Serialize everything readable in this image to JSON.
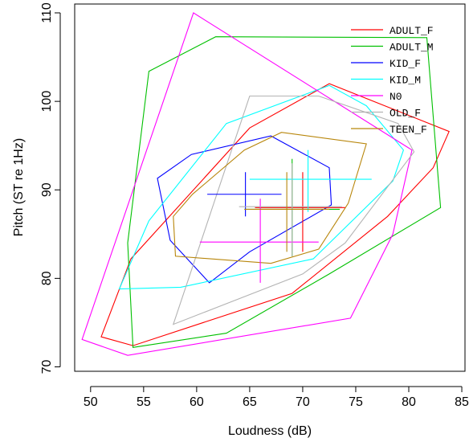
{
  "chart_data": {
    "type": "line",
    "title": "",
    "xlabel": "Loudness (dB)",
    "ylabel": "Pitch (ST re 1Hz)",
    "xlim": [
      48.5,
      85.3
    ],
    "ylim": [
      69.5,
      111.0
    ],
    "x_ticks": [
      50,
      55,
      60,
      65,
      70,
      75,
      80,
      85
    ],
    "y_ticks": [
      70,
      80,
      90,
      100,
      110
    ],
    "grid": false,
    "legend_position": "top-right",
    "series": [
      {
        "name": "ADULT_F",
        "color": "#ff0000",
        "hull": [
          [
            54.0,
            72.4
          ],
          [
            51.0,
            73.4
          ],
          [
            53.8,
            82.2
          ],
          [
            65.0,
            97.0
          ],
          [
            72.5,
            102.0
          ],
          [
            83.8,
            96.6
          ],
          [
            82.3,
            92.5
          ],
          [
            78.0,
            87.0
          ],
          [
            69.0,
            78.3
          ]
        ],
        "center": [
          70.0,
          88.0
        ],
        "err_x": [
          65.5,
          74.0
        ],
        "err_y": [
          83.0,
          92.0
        ]
      },
      {
        "name": "ADULT_M",
        "color": "#00c000",
        "hull": [
          [
            54.0,
            72.2
          ],
          [
            62.8,
            73.8
          ],
          [
            72.5,
            80.5
          ],
          [
            83.0,
            88.0
          ],
          [
            81.7,
            107.2
          ],
          [
            61.8,
            107.3
          ],
          [
            55.5,
            103.4
          ],
          [
            53.5,
            84.0
          ]
        ],
        "center": [
          69.0,
          87.8
        ],
        "err_x": [
          64.5,
          73.5
        ],
        "err_y": [
          82.5,
          93.5
        ]
      },
      {
        "name": "KID_F",
        "color": "#0000ff",
        "hull": [
          [
            61.2,
            79.5
          ],
          [
            57.5,
            84.3
          ],
          [
            56.3,
            91.3
          ],
          [
            59.5,
            94.0
          ],
          [
            67.0,
            96.1
          ],
          [
            72.5,
            92.5
          ],
          [
            72.7,
            88.3
          ],
          [
            65.0,
            83.0
          ]
        ],
        "center": [
          64.6,
          89.5
        ],
        "err_x": [
          61.0,
          68.0
        ],
        "err_y": [
          87.0,
          92.0
        ]
      },
      {
        "name": "KID_M",
        "color": "#00ffff",
        "hull": [
          [
            52.7,
            78.8
          ],
          [
            55.5,
            86.5
          ],
          [
            62.8,
            97.5
          ],
          [
            72.5,
            101.8
          ],
          [
            76.0,
            99.5
          ],
          [
            79.5,
            94.5
          ],
          [
            78.5,
            91.0
          ],
          [
            71.0,
            82.2
          ],
          [
            58.5,
            79.0
          ]
        ],
        "center": [
          70.5,
          91.2
        ],
        "err_x": [
          65.0,
          76.5
        ],
        "err_y": [
          87.5,
          94.5
        ]
      },
      {
        "name": "N0",
        "color": "#ff00ff",
        "hull": [
          [
            59.7,
            110.0
          ],
          [
            80.3,
            94.5
          ],
          [
            78.5,
            85.0
          ],
          [
            74.5,
            75.5
          ],
          [
            53.5,
            71.3
          ],
          [
            49.2,
            73.1
          ]
        ],
        "center": [
          66.0,
          84.1
        ],
        "err_x": [
          60.3,
          71.5
        ],
        "err_y": [
          79.5,
          89.0
        ]
      },
      {
        "name": "OLD_F",
        "color": "#b3b3b3",
        "hull": [
          [
            57.8,
            74.8
          ],
          [
            65.0,
            100.6
          ],
          [
            71.5,
            100.6
          ],
          [
            79.0,
            97.5
          ],
          [
            80.5,
            94.3
          ],
          [
            74.0,
            84.0
          ],
          [
            70.0,
            80.5
          ]
        ],
        "center": [
          69.0,
          88.1
        ],
        "err_x": [
          64.0,
          73.7
        ],
        "err_y": [
          82.5,
          93.0
        ]
      },
      {
        "name": "TEEN_F",
        "color": "#b8860b",
        "hull": [
          [
            57.8,
            87.0
          ],
          [
            59.6,
            89.5
          ],
          [
            64.5,
            94.5
          ],
          [
            68.0,
            96.5
          ],
          [
            76.0,
            95.2
          ],
          [
            74.3,
            88.5
          ],
          [
            71.5,
            83.3
          ],
          [
            67.0,
            81.7
          ],
          [
            58.0,
            82.5
          ]
        ],
        "center": [
          68.5,
          87.8
        ],
        "err_x": [
          64.5,
          72.5
        ],
        "err_y": [
          83.0,
          92.0
        ]
      }
    ]
  }
}
